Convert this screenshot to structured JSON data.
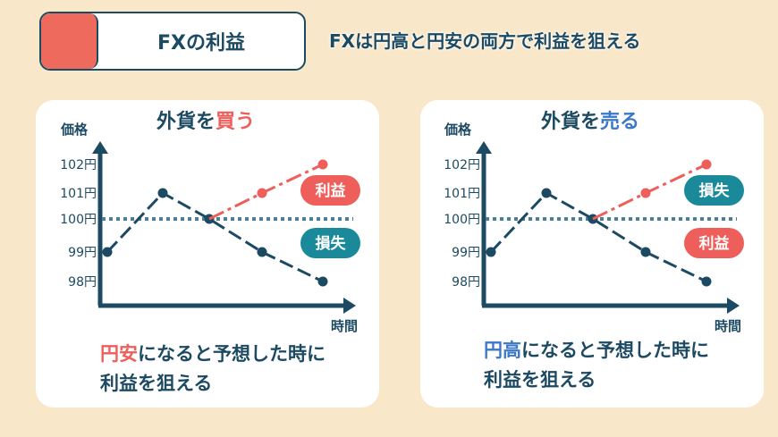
{
  "header": {
    "title": "FXの利益",
    "subtitle": "FXは円高と円安の両方で利益を狙える"
  },
  "colors": {
    "background": "#f9e7c9",
    "navy": "#1d4a63",
    "profit": "#ee5e5a",
    "loss": "#1a8a9a",
    "baseline": "#4a7f9c",
    "accent": "#ee6a5c"
  },
  "panels": [
    {
      "title_prefix": "外貨を",
      "title_action": "買う",
      "caption_highlight": "円安",
      "caption_line1_rest": "になると予想した時に",
      "caption_line2": "利益を狙える"
    },
    {
      "title_prefix": "外貨を",
      "title_action": "売る",
      "caption_highlight": "円高",
      "caption_line1_rest": "になると予想した時に",
      "caption_line2": "利益を狙える"
    }
  ],
  "chart_data": [
    {
      "type": "line",
      "ylabel": "価格",
      "xlabel": "時間",
      "yticks": [
        "98円",
        "99円",
        "100円",
        "101円",
        "102円"
      ],
      "baseline": 100,
      "series": [
        {
          "values": [
            99,
            101,
            100,
            99,
            98
          ],
          "color": "#1d4a63"
        },
        {
          "values": [
            null,
            null,
            100,
            101,
            102
          ],
          "color": "#ee5e5a"
        }
      ],
      "badges": [
        {
          "label": "利益",
          "color": "#ee5e5a",
          "position": "upper"
        },
        {
          "label": "損失",
          "color": "#1a8a9a",
          "position": "lower"
        }
      ]
    },
    {
      "type": "line",
      "ylabel": "価格",
      "xlabel": "時間",
      "yticks": [
        "98円",
        "99円",
        "100円",
        "101円",
        "102円"
      ],
      "baseline": 100,
      "series": [
        {
          "values": [
            99,
            101,
            100,
            99,
            98
          ],
          "color": "#1d4a63"
        },
        {
          "values": [
            null,
            null,
            100,
            101,
            102
          ],
          "color": "#ee5e5a"
        }
      ],
      "badges": [
        {
          "label": "損失",
          "color": "#1a8a9a",
          "position": "upper"
        },
        {
          "label": "利益",
          "color": "#ee5e5a",
          "position": "lower"
        }
      ]
    }
  ]
}
